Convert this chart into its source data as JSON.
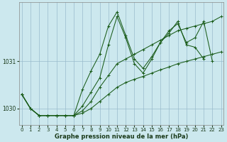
{
  "xlabel": "Graphe pression niveau de la mer (hPa)",
  "background_color": "#cce8ee",
  "grid_color": "#99bbcc",
  "line_color": "#1a5c1a",
  "x_ticks": [
    0,
    1,
    2,
    3,
    4,
    5,
    6,
    7,
    8,
    9,
    10,
    11,
    12,
    13,
    14,
    15,
    16,
    17,
    18,
    19,
    20,
    21,
    22,
    23
  ],
  "y_ticks": [
    1030,
    1031
  ],
  "ylim": [
    1029.65,
    1032.25
  ],
  "xlim": [
    -0.3,
    23.3
  ],
  "series": [
    [
      1030.3,
      1030.0,
      1029.85,
      1029.85,
      1029.85,
      1029.85,
      1029.85,
      1030.4,
      1030.8,
      1031.15,
      1031.75,
      1032.05,
      1031.55,
      1031.05,
      1030.85,
      1031.1,
      1031.4,
      1031.6,
      1031.85,
      1031.35,
      1031.3,
      1031.05,
      null,
      null
    ],
    [
      1030.3,
      1030.0,
      1029.85,
      1029.85,
      1029.85,
      1029.85,
      1029.85,
      1030.05,
      1030.35,
      1030.65,
      1031.35,
      1031.95,
      1031.5,
      1030.95,
      1030.75,
      1031.05,
      1031.4,
      1031.65,
      1031.8,
      1031.4,
      1031.5,
      1031.85,
      1031.0,
      null
    ],
    [
      1030.3,
      1030.0,
      1029.85,
      1029.85,
      1029.85,
      1029.85,
      1029.85,
      1029.95,
      1030.15,
      1030.45,
      1030.7,
      1030.95,
      1031.05,
      1031.15,
      1031.25,
      1031.35,
      1031.45,
      1031.55,
      1031.65,
      1031.7,
      1031.75,
      1031.8,
      1031.85,
      1031.95
    ],
    [
      1030.3,
      1030.0,
      1029.85,
      1029.85,
      1029.85,
      1029.85,
      1029.85,
      1029.9,
      1030.0,
      1030.15,
      1030.3,
      1030.45,
      1030.55,
      1030.62,
      1030.68,
      1030.75,
      1030.82,
      1030.88,
      1030.95,
      1031.0,
      1031.05,
      1031.1,
      1031.15,
      1031.2
    ]
  ]
}
